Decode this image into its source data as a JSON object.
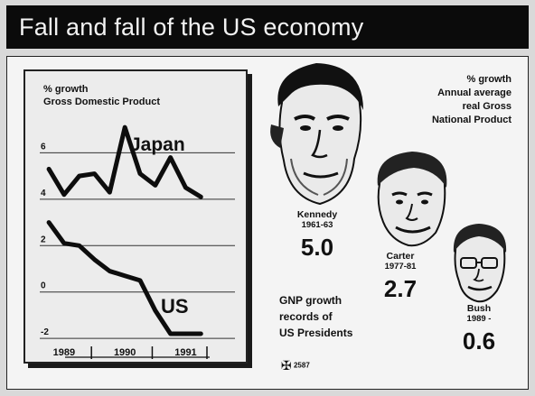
{
  "title": "Fall and fall of the US economy",
  "chart_data": [
    {
      "type": "line",
      "title": "% growth\nGross Domestic Product",
      "title_lines": [
        "% growth",
        "Gross Domestic Product"
      ],
      "xlabel": "",
      "ylabel": "",
      "x_tick_labels": [
        "1989",
        "1990",
        "1991"
      ],
      "y_tick_labels": [
        "-2",
        "0",
        "2",
        "4",
        "6"
      ],
      "y_ticks": [
        -2,
        0,
        2,
        4,
        6
      ],
      "ylim": [
        -2.5,
        8
      ],
      "xlim": [
        1988.6,
        1991.9
      ],
      "grid": true,
      "series": [
        {
          "name": "Japan",
          "x": [
            1988.75,
            1989.0,
            1989.25,
            1989.5,
            1989.75,
            1990.0,
            1990.25,
            1990.5,
            1990.75,
            1991.0,
            1991.25
          ],
          "values": [
            5.3,
            4.2,
            5.0,
            5.1,
            4.3,
            7.1,
            5.1,
            4.6,
            5.8,
            4.5,
            4.1
          ]
        },
        {
          "name": "US",
          "x": [
            1988.75,
            1989.0,
            1989.25,
            1989.5,
            1989.75,
            1990.0,
            1990.25,
            1990.5,
            1990.75,
            1991.0,
            1991.25
          ],
          "values": [
            3.0,
            2.1,
            2.0,
            1.4,
            0.9,
            0.7,
            0.5,
            -0.8,
            -1.8,
            -1.8,
            -1.8
          ]
        }
      ]
    },
    {
      "type": "bar",
      "title": "% growth\nAnnual average\nreal Gross\nNational Product",
      "title_lines": [
        "% growth",
        "Annual average",
        "real Gross",
        "National Product"
      ],
      "categories": [
        "Kennedy",
        "Carter",
        "Bush"
      ],
      "periods": [
        "1961-63",
        "1977-81",
        "1989 -"
      ],
      "values": [
        5.0,
        2.7,
        0.6
      ],
      "value_labels": [
        "5.0",
        "2.7",
        "0.6"
      ]
    }
  ],
  "caption_lines": [
    "GNP growth",
    "records of",
    "US Presidents"
  ],
  "credit": {
    "mark": "✠",
    "number": "2587"
  },
  "colors": {
    "ink": "#111111",
    "paper": "#f4f4f4",
    "title_bg": "#0b0b0b"
  }
}
